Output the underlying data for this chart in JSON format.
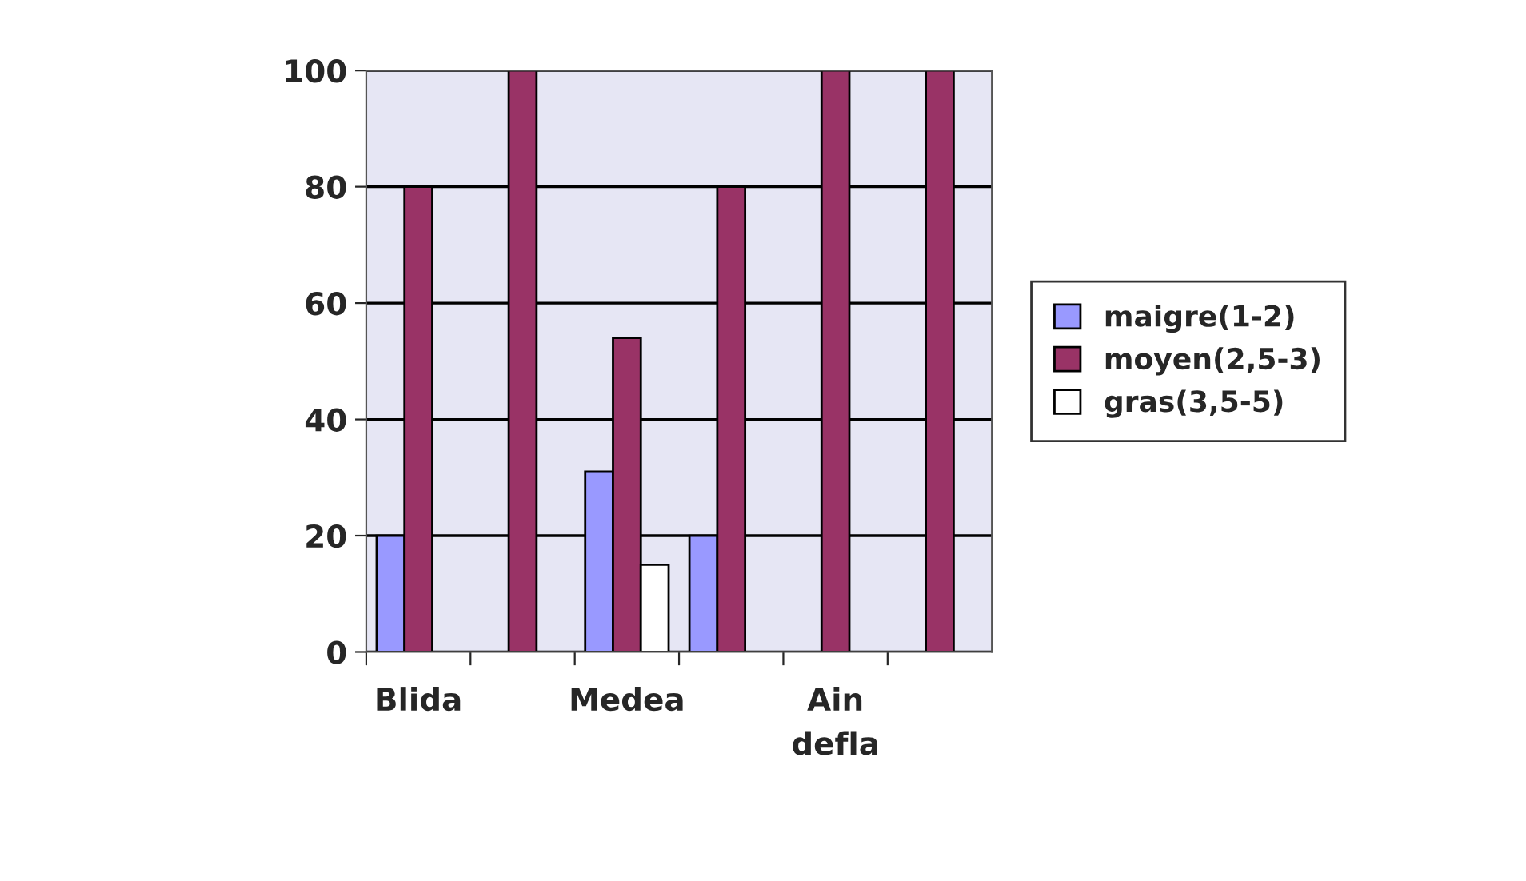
{
  "chart_data": {
    "type": "bar",
    "categories": [
      "Blida",
      null,
      "Medea",
      null,
      "Ain\ndefla",
      null
    ],
    "series": [
      {
        "name": "maigre(1-2)",
        "color": "#9999ff",
        "values": [
          20,
          0,
          31,
          20,
          0,
          0
        ]
      },
      {
        "name": "moyen(2,5-3)",
        "color": "#993366",
        "values": [
          80,
          100,
          54,
          80,
          100,
          100
        ]
      },
      {
        "name": "gras(3,5-5)",
        "color": "#ffffff",
        "values": [
          0,
          0,
          15,
          0,
          0,
          0
        ]
      }
    ],
    "ylim": [
      0,
      100
    ],
    "yticks": [
      0,
      20,
      40,
      60,
      80,
      100
    ],
    "grid": "y",
    "legend": "right"
  }
}
